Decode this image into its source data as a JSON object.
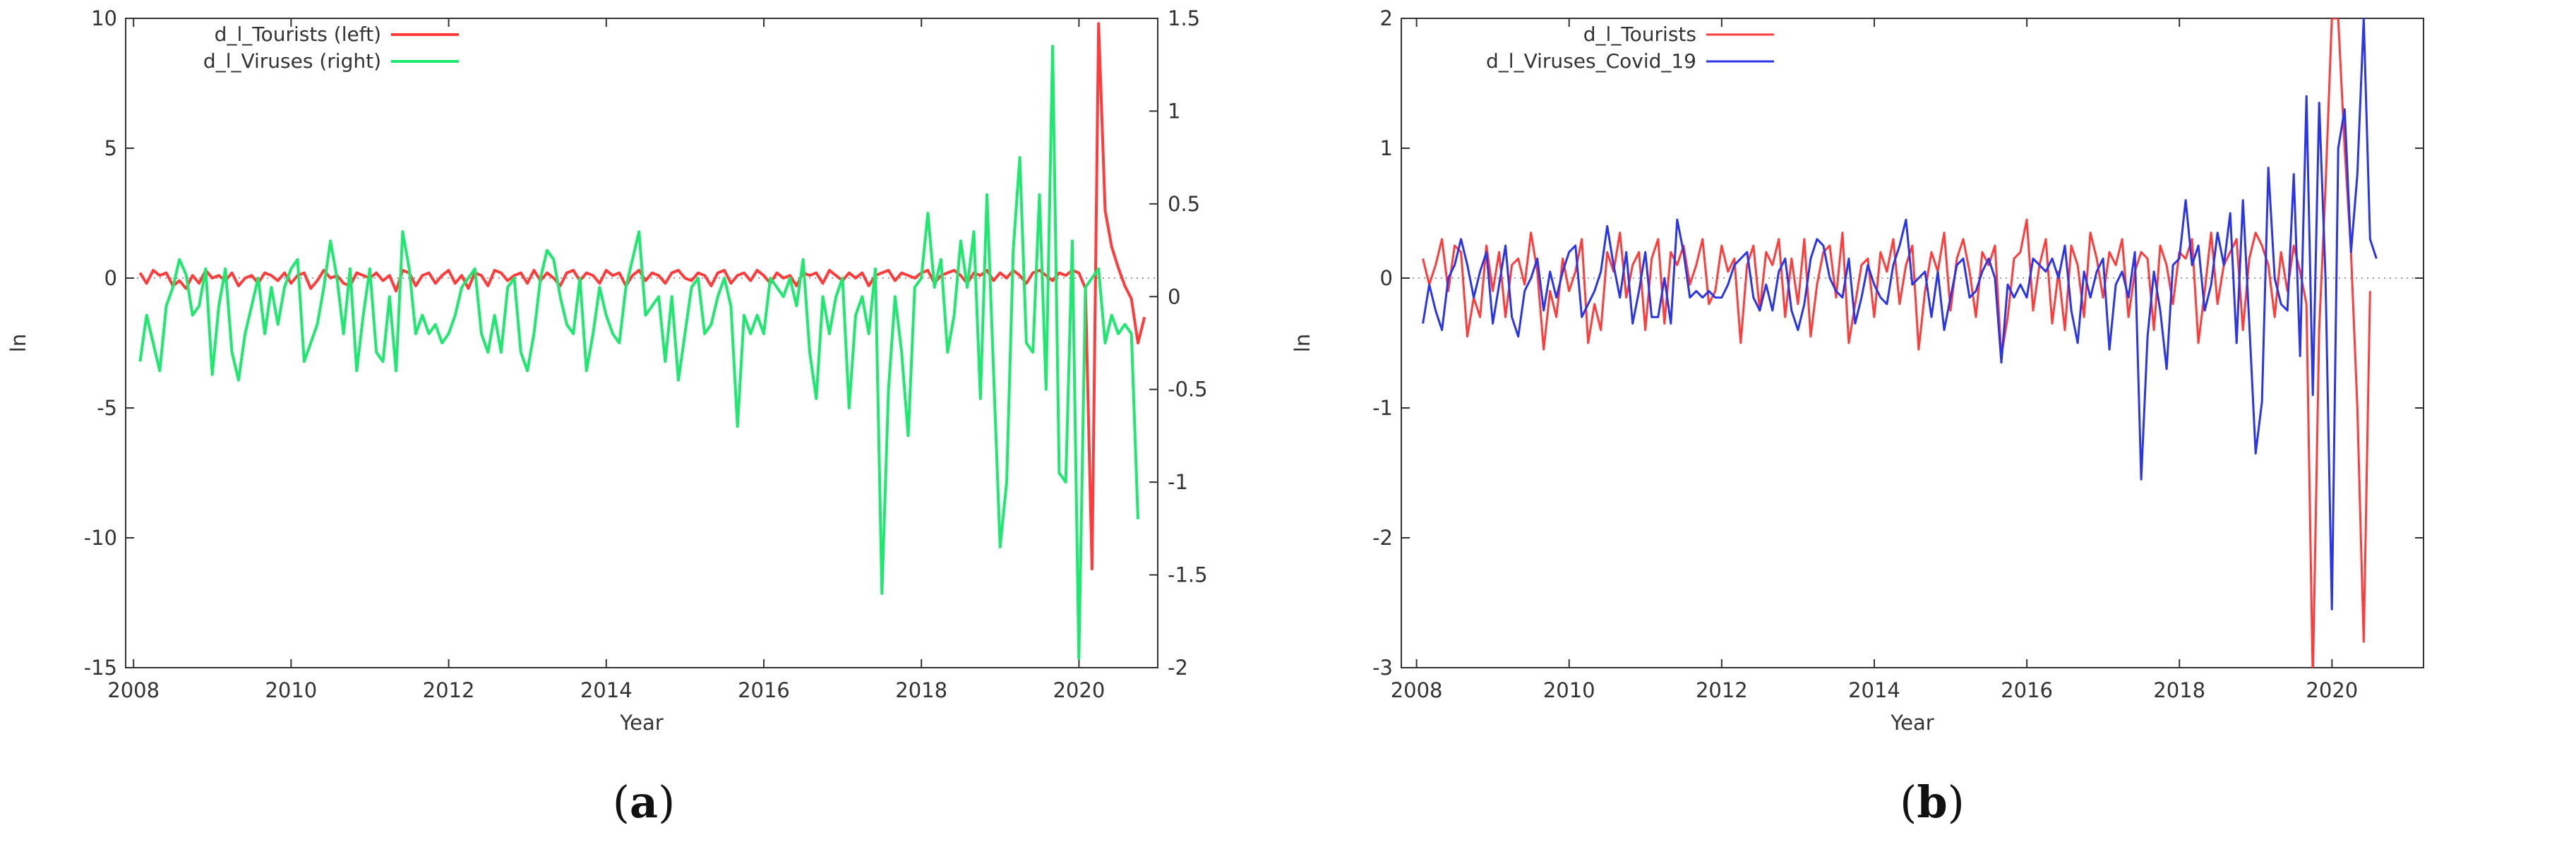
{
  "chart_data": [
    {
      "panel_label": "a",
      "type": "line",
      "title": "",
      "xlabel": "Year",
      "ylabel": "ln",
      "xlim": [
        2007.9,
        2021.0
      ],
      "ylim_left": [
        -15,
        10
      ],
      "ylim_right": [
        -2,
        1.5
      ],
      "x_ticks": [
        "2008",
        "2010",
        "2012",
        "2014",
        "2016",
        "2018",
        "2020"
      ],
      "y_ticks_left": [
        "10",
        "5",
        "0",
        "-5",
        "-10",
        "-15"
      ],
      "y_ticks_right": [
        "1.5",
        "1",
        "0.5",
        "0",
        "-0.5",
        "-1",
        "-1.5",
        "-2"
      ],
      "grid": false,
      "zero_line": true,
      "legend_position": "top-left",
      "series": [
        {
          "name": "d_l_Tourists  (left)",
          "axis": "left",
          "color": "#ff3b3b",
          "x_start": 2008.083,
          "x_step": 0.08333,
          "values": [
            0.2,
            -0.2,
            0.3,
            0.1,
            0.2,
            -0.3,
            -0.1,
            -0.4,
            0.1,
            -0.2,
            0.3,
            0.0,
            0.1,
            -0.1,
            0.2,
            -0.3,
            0.0,
            0.1,
            -0.2,
            0.2,
            0.1,
            -0.1,
            0.2,
            -0.2,
            0.1,
            0.2,
            -0.4,
            -0.1,
            0.3,
            0.0,
            0.1,
            -0.2,
            -0.3,
            0.2,
            0.1,
            0.0,
            0.2,
            -0.1,
            0.1,
            -0.5,
            0.3,
            0.2,
            -0.3,
            0.1,
            0.2,
            -0.2,
            0.1,
            0.3,
            -0.2,
            0.1,
            -0.4,
            0.2,
            0.1,
            -0.3,
            0.3,
            0.2,
            -0.1,
            0.1,
            0.2,
            -0.2,
            0.3,
            -0.1,
            0.2,
            0.0,
            -0.3,
            0.2,
            0.3,
            -0.1,
            0.2,
            0.1,
            -0.2,
            0.3,
            0.1,
            0.2,
            -0.3,
            0.1,
            0.3,
            -0.1,
            0.2,
            0.1,
            -0.2,
            0.2,
            0.3,
            0.0,
            -0.1,
            0.2,
            0.1,
            -0.3,
            0.2,
            0.3,
            -0.2,
            0.1,
            0.2,
            -0.1,
            0.3,
            0.1,
            -0.2,
            0.2,
            0.0,
            0.1,
            -0.3,
            0.2,
            0.1,
            0.2,
            -0.2,
            0.3,
            0.1,
            -0.1,
            0.2,
            0.0,
            0.2,
            -0.3,
            0.1,
            0.2,
            0.3,
            -0.1,
            0.2,
            0.1,
            0.0,
            0.2,
            0.3,
            -0.2,
            0.1,
            0.2,
            0.3,
            0.1,
            -0.2,
            0.2,
            0.1,
            0.3,
            -0.1,
            0.2,
            0.0,
            0.3,
            0.1,
            -0.2,
            0.2,
            0.3,
            0.1,
            -0.1,
            0.2,
            0.1,
            0.3,
            0.2,
            -0.4,
            -11.2,
            9.8,
            2.6,
            1.2,
            0.4,
            -0.3,
            -0.8,
            -2.5,
            -1.5
          ]
        },
        {
          "name": "d_l_Viruses  (right)",
          "axis": "right",
          "color": "#1ee870",
          "x_start": 2008.083,
          "x_step": 0.08333,
          "values": [
            -0.35,
            -0.1,
            -0.25,
            -0.4,
            -0.05,
            0.05,
            0.2,
            0.12,
            -0.1,
            -0.05,
            0.15,
            -0.42,
            -0.05,
            0.15,
            -0.3,
            -0.45,
            -0.2,
            -0.05,
            0.1,
            -0.2,
            0.05,
            -0.15,
            0.05,
            0.15,
            0.2,
            -0.35,
            -0.25,
            -0.15,
            0.05,
            0.3,
            0.1,
            -0.2,
            0.15,
            -0.4,
            -0.1,
            0.15,
            -0.3,
            -0.35,
            0.0,
            -0.4,
            0.35,
            0.15,
            -0.2,
            -0.1,
            -0.2,
            -0.15,
            -0.25,
            -0.2,
            -0.1,
            0.05,
            0.1,
            0.15,
            -0.2,
            -0.3,
            -0.1,
            -0.3,
            0.05,
            0.1,
            -0.3,
            -0.4,
            -0.2,
            0.1,
            0.25,
            0.2,
            0.0,
            -0.15,
            -0.2,
            0.1,
            -0.4,
            -0.2,
            0.05,
            -0.1,
            -0.2,
            -0.25,
            0.05,
            0.2,
            0.35,
            -0.1,
            -0.05,
            0.0,
            -0.35,
            0.0,
            -0.45,
            -0.2,
            0.05,
            0.1,
            -0.2,
            -0.15,
            0.0,
            0.1,
            -0.05,
            -0.7,
            -0.1,
            -0.2,
            -0.1,
            -0.2,
            0.1,
            0.05,
            0.0,
            0.1,
            -0.05,
            0.2,
            -0.3,
            -0.55,
            0.0,
            -0.2,
            0.0,
            0.1,
            -0.6,
            -0.1,
            0.0,
            -0.2,
            0.15,
            -1.6,
            -0.5,
            0.0,
            -0.3,
            -0.75,
            0.05,
            0.1,
            0.45,
            0.05,
            0.2,
            -0.3,
            -0.1,
            0.3,
            0.05,
            0.35,
            -0.55,
            0.55,
            -0.4,
            -1.35,
            -1.0,
            0.25,
            0.75,
            -0.25,
            -0.3,
            0.55,
            -0.5,
            1.35,
            -0.95,
            -1.0,
            0.3,
            -1.95,
            0.05,
            0.1,
            0.15,
            -0.25,
            -0.1,
            -0.2,
            -0.15,
            -0.2,
            -1.2
          ]
        }
      ]
    },
    {
      "panel_label": "b",
      "type": "line",
      "title": "",
      "xlabel": "Year",
      "ylabel": "ln",
      "xlim": [
        2007.8,
        2021.2
      ],
      "ylim": [
        -3,
        2
      ],
      "x_ticks": [
        "2008",
        "2010",
        "2012",
        "2014",
        "2016",
        "2018",
        "2020"
      ],
      "y_ticks": [
        "2",
        "1",
        "0",
        "-1",
        "-2",
        "-3"
      ],
      "grid": false,
      "zero_line": true,
      "legend_position": "top-left",
      "series": [
        {
          "name": "d_l_Tourists",
          "color": "#ff3b3b",
          "x_start": 2008.083,
          "x_step": 0.08333,
          "values": [
            0.15,
            -0.05,
            0.1,
            0.3,
            -0.1,
            0.25,
            0.2,
            -0.45,
            -0.15,
            -0.3,
            0.25,
            -0.1,
            0.2,
            -0.3,
            0.1,
            0.15,
            -0.05,
            0.35,
            0.05,
            -0.55,
            -0.1,
            -0.3,
            0.15,
            -0.1,
            0.05,
            0.3,
            -0.5,
            -0.2,
            -0.4,
            0.2,
            0.05,
            0.35,
            -0.15,
            0.1,
            0.2,
            -0.4,
            0.15,
            0.3,
            -0.35,
            0.2,
            0.1,
            0.25,
            -0.05,
            0.1,
            0.3,
            -0.2,
            -0.1,
            0.25,
            0.05,
            0.15,
            -0.5,
            0.1,
            0.25,
            -0.25,
            0.2,
            0.1,
            0.3,
            -0.3,
            0.15,
            -0.2,
            0.3,
            -0.45,
            -0.05,
            0.2,
            0.25,
            -0.15,
            0.35,
            -0.5,
            -0.2,
            0.1,
            0.15,
            -0.3,
            0.2,
            0.05,
            0.3,
            -0.2,
            0.1,
            0.25,
            -0.55,
            -0.1,
            0.2,
            0.05,
            0.35,
            -0.25,
            0.15,
            0.3,
            0.05,
            -0.3,
            0.2,
            0.1,
            0.25,
            -0.6,
            -0.3,
            0.15,
            0.2,
            0.45,
            -0.25,
            0.1,
            0.3,
            -0.35,
            0.05,
            -0.4,
            0.25,
            0.1,
            -0.3,
            0.35,
            0.15,
            -0.15,
            0.2,
            0.1,
            0.3,
            -0.3,
            0.05,
            0.2,
            0.15,
            -0.4,
            0.25,
            0.1,
            -0.2,
            0.2,
            0.15,
            0.3,
            -0.5,
            -0.1,
            0.35,
            -0.2,
            0.1,
            0.2,
            0.3,
            -0.4,
            0.15,
            0.35,
            0.25,
            0.1,
            -0.3,
            0.2,
            -0.1,
            0.25,
            0.05,
            -0.2,
            -3.1,
            -0.4,
            0.7,
            2.0,
            2.0,
            1.0,
            0.2,
            -1.0,
            -2.8,
            -0.1
          ]
        },
        {
          "name": "d_l_Viruses_Covid_19",
          "color": "#2a35e8",
          "x_start": 2008.083,
          "x_step": 0.08333,
          "values": [
            -0.35,
            -0.05,
            -0.25,
            -0.4,
            0.0,
            0.1,
            0.3,
            0.1,
            -0.15,
            0.05,
            0.2,
            -0.35,
            -0.05,
            0.25,
            -0.3,
            -0.45,
            -0.1,
            0.0,
            0.15,
            -0.25,
            0.05,
            -0.15,
            0.05,
            0.2,
            0.25,
            -0.3,
            -0.2,
            -0.1,
            0.05,
            0.4,
            0.1,
            -0.15,
            0.2,
            -0.35,
            -0.1,
            0.2,
            -0.3,
            -0.3,
            0.0,
            -0.35,
            0.45,
            0.2,
            -0.15,
            -0.1,
            -0.15,
            -0.1,
            -0.15,
            -0.15,
            -0.05,
            0.1,
            0.15,
            0.2,
            -0.15,
            -0.25,
            -0.05,
            -0.25,
            0.05,
            0.15,
            -0.25,
            -0.4,
            -0.2,
            0.15,
            0.3,
            0.25,
            0.0,
            -0.1,
            -0.15,
            0.15,
            -0.35,
            -0.15,
            0.1,
            -0.05,
            -0.15,
            -0.2,
            0.1,
            0.25,
            0.45,
            -0.05,
            0.0,
            0.05,
            -0.3,
            0.05,
            -0.4,
            -0.15,
            0.1,
            0.15,
            -0.15,
            -0.1,
            0.05,
            0.15,
            0.0,
            -0.65,
            -0.05,
            -0.15,
            -0.05,
            -0.15,
            0.15,
            0.1,
            0.05,
            0.15,
            0.0,
            0.25,
            -0.25,
            -0.5,
            0.05,
            -0.15,
            0.05,
            0.15,
            -0.55,
            -0.05,
            0.05,
            -0.15,
            0.2,
            -1.55,
            -0.45,
            0.05,
            -0.25,
            -0.7,
            0.1,
            0.15,
            0.6,
            0.1,
            0.25,
            -0.25,
            -0.05,
            0.35,
            0.1,
            0.5,
            -0.5,
            0.6,
            -0.35,
            -1.35,
            -0.95,
            0.85,
            0.0,
            -0.2,
            -0.25,
            0.8,
            -0.6,
            1.4,
            -0.9,
            1.35,
            0.0,
            -2.55,
            1.0,
            1.3,
            0.2,
            0.8,
            2.0,
            0.3,
            0.15
          ]
        }
      ]
    }
  ],
  "captions": {
    "a": "a",
    "b": "b"
  }
}
